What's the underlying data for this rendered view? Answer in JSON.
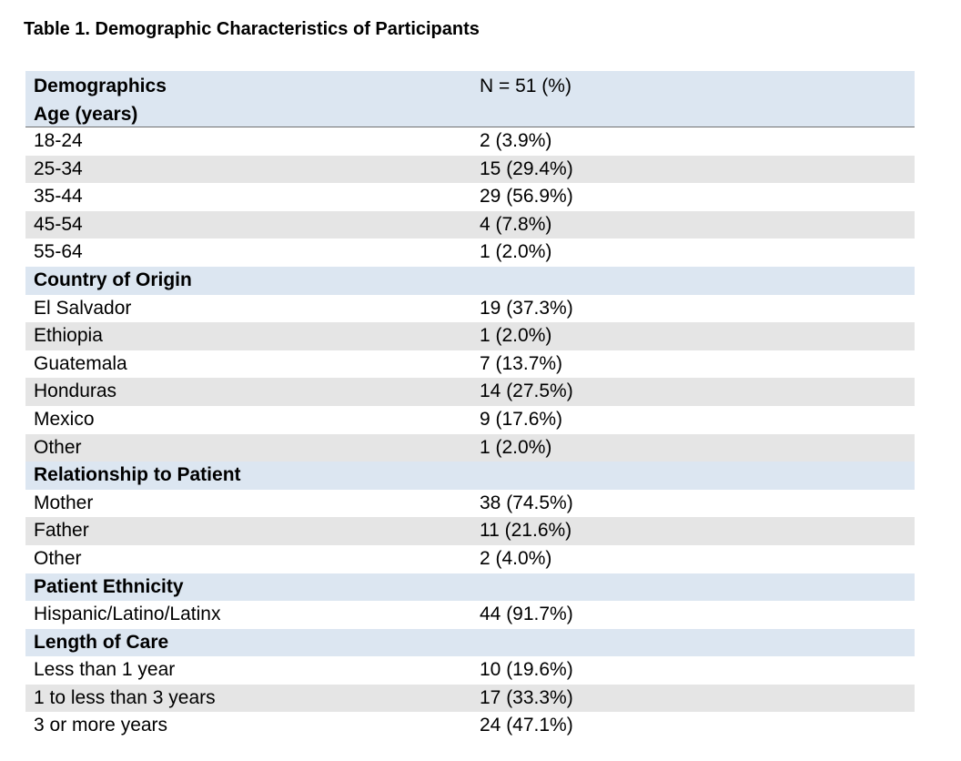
{
  "caption": "Table 1. Demographic Characteristics of Participants",
  "header": {
    "col1_line1": "Demographics",
    "col1_line2": "Age (years)",
    "col2": "N = 51 (%)"
  },
  "rows": [
    {
      "kind": "data",
      "label": "18-24",
      "value": "2 (3.9%)"
    },
    {
      "kind": "data",
      "label": "25-34",
      "value": "15 (29.4%)"
    },
    {
      "kind": "data",
      "label": "35-44",
      "value": "29 (56.9%)"
    },
    {
      "kind": "data",
      "label": "45-54",
      "value": "4 (7.8%)"
    },
    {
      "kind": "data",
      "label": "55-64",
      "value": "1 (2.0%)"
    },
    {
      "kind": "section",
      "label": "Country of Origin",
      "value": ""
    },
    {
      "kind": "data",
      "label": "El Salvador",
      "value": "19 (37.3%)"
    },
    {
      "kind": "data",
      "label": "Ethiopia",
      "value": "1 (2.0%)"
    },
    {
      "kind": "data",
      "label": "Guatemala",
      "value": "7 (13.7%)"
    },
    {
      "kind": "data",
      "label": "Honduras",
      "value": "14 (27.5%)"
    },
    {
      "kind": "data",
      "label": "Mexico",
      "value": "9 (17.6%)"
    },
    {
      "kind": "data",
      "label": "Other",
      "value": "1 (2.0%)"
    },
    {
      "kind": "section",
      "label": "Relationship to Patient",
      "value": ""
    },
    {
      "kind": "data",
      "label": "Mother",
      "value": "38 (74.5%)"
    },
    {
      "kind": "data",
      "label": "Father",
      "value": "11 (21.6%)"
    },
    {
      "kind": "data",
      "label": "Other",
      "value": "2 (4.0%)"
    },
    {
      "kind": "section",
      "label": "Patient Ethnicity",
      "value": ""
    },
    {
      "kind": "data",
      "label": "Hispanic/Latino/Latinx",
      "value": "44 (91.7%)"
    },
    {
      "kind": "section",
      "label": "Length of Care",
      "value": ""
    },
    {
      "kind": "data",
      "label": "Less than 1 year",
      "value": "10 (19.6%)"
    },
    {
      "kind": "data",
      "label": "1 to less than 3 years",
      "value": "17 (33.3%)"
    },
    {
      "kind": "data",
      "label": "3 or more years",
      "value": "24 (47.1%)"
    }
  ]
}
